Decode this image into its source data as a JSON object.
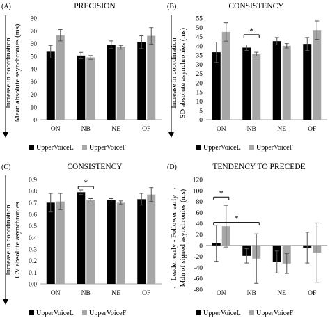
{
  "charts": [
    {
      "panel": "(A)",
      "type": "bar",
      "title": "PRECISION",
      "ylabel_lines": [
        "Increase in coordination",
        "Mean absolute asynchronies (ms)"
      ],
      "categories": [
        "ON",
        "NB",
        "NE",
        "OF"
      ],
      "ylim": [
        0,
        80
      ],
      "yticks": [
        0,
        10,
        20,
        30,
        40,
        50,
        60,
        70,
        80
      ],
      "series": [
        {
          "name": "UpperVoiceL",
          "color": "#000000",
          "values": [
            53.5,
            50.5,
            59,
            61
          ],
          "errors": [
            5,
            2.5,
            3,
            5
          ]
        },
        {
          "name": "UpperVoiceF",
          "color": "#a6a6a6",
          "values": [
            66.5,
            49,
            57,
            66
          ],
          "errors": [
            4.5,
            1.5,
            1.5,
            6.5
          ]
        }
      ],
      "annotations": []
    },
    {
      "panel": "(B)",
      "type": "bar",
      "title": "CONSISTENCY",
      "ylabel_lines": [
        "Increase in coordination",
        "SD absolute asynchronies (ms)"
      ],
      "categories": [
        "ON",
        "NB",
        "NE",
        "OF"
      ],
      "ylim": [
        0,
        55
      ],
      "yticks": [
        0,
        5,
        10,
        15,
        20,
        25,
        30,
        35,
        40,
        45,
        50,
        55
      ],
      "series": [
        {
          "name": "UpperVoiceL",
          "color": "#000000",
          "values": [
            36.5,
            39,
            42.5,
            41
          ],
          "errors": [
            5.5,
            1.5,
            2,
            3.5
          ]
        },
        {
          "name": "UpperVoiceF",
          "color": "#a6a6a6",
          "values": [
            47.5,
            35.5,
            40,
            48.5
          ],
          "errors": [
            5,
            1,
            1.2,
            5
          ]
        }
      ],
      "annotations": [
        {
          "label": "*",
          "from": 1,
          "to": 1,
          "y": 46
        }
      ]
    },
    {
      "panel": "(C)",
      "type": "bar",
      "title": "CONSISTENCY",
      "ylabel_lines": [
        "Increase in coordination",
        "CV absolute asynchronies"
      ],
      "categories": [
        "ON",
        "NB",
        "NE",
        "OF"
      ],
      "ylim": [
        0,
        0.9
      ],
      "yticks": [
        0,
        0.1,
        0.2,
        0.3,
        0.4,
        0.5,
        0.6,
        0.7,
        0.8,
        0.9
      ],
      "series": [
        {
          "name": "UpperVoiceL",
          "color": "#000000",
          "values": [
            0.7,
            0.79,
            0.72,
            0.73
          ],
          "errors": [
            0.08,
            0.02,
            0.015,
            0.05
          ]
        },
        {
          "name": "UpperVoiceF",
          "color": "#a6a6a6",
          "values": [
            0.71,
            0.72,
            0.7,
            0.77
          ],
          "errors": [
            0.07,
            0.015,
            0.015,
            0.06
          ]
        }
      ],
      "annotations": [
        {
          "label": "*",
          "from": 1,
          "to": 1,
          "y": 0.84
        }
      ]
    },
    {
      "panel": "(D)",
      "type": "bar",
      "title": "TENDENCY TO PRECEDE",
      "ylabel_lines": [
        "← Leader early - Follower early →",
        "Mdn of signed asynchronies (ms)"
      ],
      "categories": [
        "ON",
        "NB",
        "NE",
        "OF"
      ],
      "ylim": [
        -80,
        120
      ],
      "yticks": [
        -80,
        -60,
        -40,
        -20,
        0,
        20,
        40,
        60,
        80,
        100,
        120
      ],
      "series": [
        {
          "name": "UpperVoiceL",
          "color": "#000000",
          "values": [
            4,
            -19,
            -30,
            -4
          ],
          "errors": [
            33,
            13,
            20,
            28
          ]
        },
        {
          "name": "UpperVoiceF",
          "color": "#a6a6a6",
          "values": [
            35,
            -24,
            -33,
            -13
          ],
          "errors": [
            38,
            45,
            18,
            54
          ]
        }
      ],
      "annotations": [
        {
          "label": "*",
          "from": 0,
          "to": 0,
          "y": 88
        },
        {
          "label": "*",
          "from": 0,
          "to": 1,
          "y": 42
        }
      ]
    }
  ],
  "panels": [
    {
      "label": "(A)",
      "title": "PRECISION",
      "y1": "Increase in coordination",
      "y2": "Mean absolute asynchronies (ms)",
      "leg_l": "UpperVoiceL",
      "leg_f": "UpperVoiceF"
    },
    {
      "label": "(B)",
      "title": "CONSISTENCY",
      "y1": "Increase in coordination",
      "y2": "SD absolute asynchronies (ms)",
      "leg_l": "UpperVoiceL",
      "leg_f": "UpperVoiceF"
    },
    {
      "label": "(C)",
      "title": "CONSISTENCY",
      "y1": "Increase in coordination",
      "y2": "CV absolute asynchronies",
      "leg_l": "UpperVoiceL",
      "leg_f": "UpperVoiceF"
    },
    {
      "label": "(D)",
      "title": "TENDENCY TO PRECEDE",
      "y1": "← Leader early - Follower early →",
      "y2": "Mdn of signed asynchronies (ms)",
      "leg_l": "UpperVoiceL",
      "leg_f": "UpperVoiceF"
    }
  ]
}
